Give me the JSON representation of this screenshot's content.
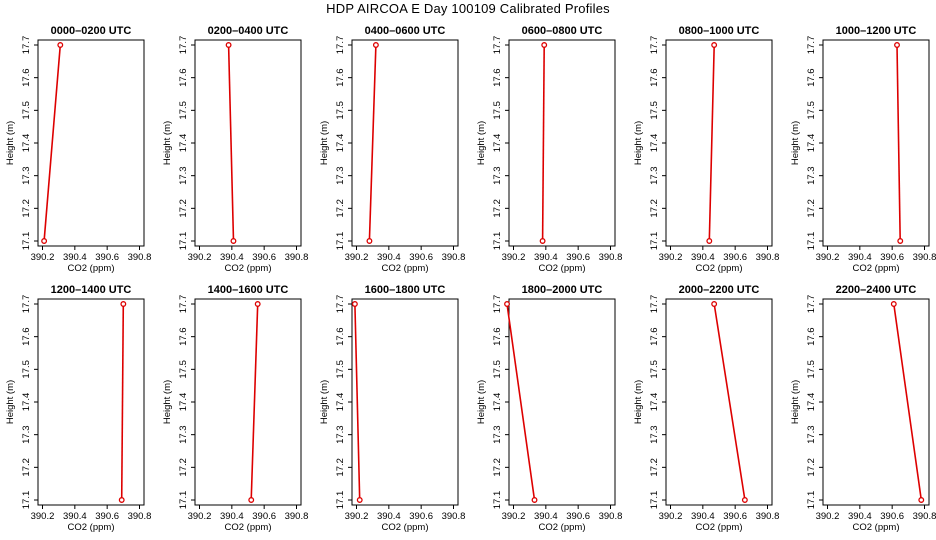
{
  "figure": {
    "title": "HDP AIRCOA E  Day 100109  Calibrated Profiles"
  },
  "colors": {
    "line": "#dd0000",
    "axis": "#000000",
    "background": "#ffffff"
  },
  "chart_data": [
    {
      "type": "line",
      "title": "0000–0200 UTC",
      "xlabel": "CO2 (ppm)",
      "ylabel": "Height (m)",
      "xlim": [
        390.2,
        390.8
      ],
      "ylim": [
        17.1,
        17.7
      ],
      "xticks": [
        "390.2",
        "390.4",
        "390.6",
        "390.8"
      ],
      "yticks": [
        "17.1",
        "17.2",
        "17.3",
        "17.4",
        "17.5",
        "17.6",
        "17.7"
      ],
      "grid": false,
      "series": [
        {
          "x": [
            390.21,
            390.31
          ],
          "y": [
            17.1,
            17.7
          ]
        }
      ]
    },
    {
      "type": "line",
      "title": "0200–0400 UTC",
      "xlabel": "CO2 (ppm)",
      "ylabel": "Height (m)",
      "xlim": [
        390.2,
        390.8
      ],
      "ylim": [
        17.1,
        17.7
      ],
      "xticks": [
        "390.2",
        "390.4",
        "390.6",
        "390.8"
      ],
      "yticks": [
        "17.1",
        "17.2",
        "17.3",
        "17.4",
        "17.5",
        "17.6",
        "17.7"
      ],
      "grid": false,
      "series": [
        {
          "x": [
            390.41,
            390.38
          ],
          "y": [
            17.1,
            17.7
          ]
        }
      ]
    },
    {
      "type": "line",
      "title": "0400–0600 UTC",
      "xlabel": "CO2 (ppm)",
      "ylabel": "Height (m)",
      "xlim": [
        390.2,
        390.8
      ],
      "ylim": [
        17.1,
        17.7
      ],
      "xticks": [
        "390.2",
        "390.4",
        "390.6",
        "390.8"
      ],
      "yticks": [
        "17.1",
        "17.2",
        "17.3",
        "17.4",
        "17.5",
        "17.6",
        "17.7"
      ],
      "grid": false,
      "series": [
        {
          "x": [
            390.28,
            390.32
          ],
          "y": [
            17.1,
            17.7
          ]
        }
      ]
    },
    {
      "type": "line",
      "title": "0600–0800 UTC",
      "xlabel": "CO2 (ppm)",
      "ylabel": "Height (m)",
      "xlim": [
        390.2,
        390.8
      ],
      "ylim": [
        17.1,
        17.7
      ],
      "xticks": [
        "390.2",
        "390.4",
        "390.6",
        "390.8"
      ],
      "yticks": [
        "17.1",
        "17.2",
        "17.3",
        "17.4",
        "17.5",
        "17.6",
        "17.7"
      ],
      "grid": false,
      "series": [
        {
          "x": [
            390.38,
            390.39
          ],
          "y": [
            17.1,
            17.7
          ]
        }
      ]
    },
    {
      "type": "line",
      "title": "0800–1000 UTC",
      "xlabel": "CO2 (ppm)",
      "ylabel": "Height (m)",
      "xlim": [
        390.2,
        390.8
      ],
      "ylim": [
        17.1,
        17.7
      ],
      "xticks": [
        "390.2",
        "390.4",
        "390.6",
        "390.8"
      ],
      "yticks": [
        "17.1",
        "17.2",
        "17.3",
        "17.4",
        "17.5",
        "17.6",
        "17.7"
      ],
      "grid": false,
      "series": [
        {
          "x": [
            390.44,
            390.47
          ],
          "y": [
            17.1,
            17.7
          ]
        }
      ]
    },
    {
      "type": "line",
      "title": "1000–1200 UTC",
      "xlabel": "CO2 (ppm)",
      "ylabel": "Height (m)",
      "xlim": [
        390.2,
        390.8
      ],
      "ylim": [
        17.1,
        17.7
      ],
      "xticks": [
        "390.2",
        "390.4",
        "390.6",
        "390.8"
      ],
      "yticks": [
        "17.1",
        "17.2",
        "17.3",
        "17.4",
        "17.5",
        "17.6",
        "17.7"
      ],
      "grid": false,
      "series": [
        {
          "x": [
            390.65,
            390.63
          ],
          "y": [
            17.1,
            17.7
          ]
        }
      ]
    },
    {
      "type": "line",
      "title": "1200–1400 UTC",
      "xlabel": "CO2 (ppm)",
      "ylabel": "Height (m)",
      "xlim": [
        390.2,
        390.8
      ],
      "ylim": [
        17.1,
        17.7
      ],
      "xticks": [
        "390.2",
        "390.4",
        "390.6",
        "390.8"
      ],
      "yticks": [
        "17.1",
        "17.2",
        "17.3",
        "17.4",
        "17.5",
        "17.6",
        "17.7"
      ],
      "grid": false,
      "series": [
        {
          "x": [
            390.69,
            390.7
          ],
          "y": [
            17.1,
            17.7
          ]
        }
      ]
    },
    {
      "type": "line",
      "title": "1400–1600 UTC",
      "xlabel": "CO2 (ppm)",
      "ylabel": "Height (m)",
      "xlim": [
        390.2,
        390.8
      ],
      "ylim": [
        17.1,
        17.7
      ],
      "xticks": [
        "390.2",
        "390.4",
        "390.6",
        "390.8"
      ],
      "yticks": [
        "17.1",
        "17.2",
        "17.3",
        "17.4",
        "17.5",
        "17.6",
        "17.7"
      ],
      "grid": false,
      "series": [
        {
          "x": [
            390.52,
            390.56
          ],
          "y": [
            17.1,
            17.7
          ]
        }
      ]
    },
    {
      "type": "line",
      "title": "1600–1800 UTC",
      "xlabel": "CO2 (ppm)",
      "ylabel": "Height (m)",
      "xlim": [
        390.2,
        390.8
      ],
      "ylim": [
        17.1,
        17.7
      ],
      "xticks": [
        "390.2",
        "390.4",
        "390.6",
        "390.8"
      ],
      "yticks": [
        "17.1",
        "17.2",
        "17.3",
        "17.4",
        "17.5",
        "17.6",
        "17.7"
      ],
      "grid": false,
      "series": [
        {
          "x": [
            390.22,
            390.19
          ],
          "y": [
            17.1,
            17.7
          ]
        }
      ]
    },
    {
      "type": "line",
      "title": "1800–2000 UTC",
      "xlabel": "CO2 (ppm)",
      "ylabel": "Height (m)",
      "xlim": [
        390.2,
        390.8
      ],
      "ylim": [
        17.1,
        17.7
      ],
      "xticks": [
        "390.2",
        "390.4",
        "390.6",
        "390.8"
      ],
      "yticks": [
        "17.1",
        "17.2",
        "17.3",
        "17.4",
        "17.5",
        "17.6",
        "17.7"
      ],
      "grid": false,
      "series": [
        {
          "x": [
            390.33,
            390.16
          ],
          "y": [
            17.1,
            17.7
          ]
        }
      ]
    },
    {
      "type": "line",
      "title": "2000–2200 UTC",
      "xlabel": "CO2 (ppm)",
      "ylabel": "Height (m)",
      "xlim": [
        390.2,
        390.8
      ],
      "ylim": [
        17.1,
        17.7
      ],
      "xticks": [
        "390.2",
        "390.4",
        "390.6",
        "390.8"
      ],
      "yticks": [
        "17.1",
        "17.2",
        "17.3",
        "17.4",
        "17.5",
        "17.6",
        "17.7"
      ],
      "grid": false,
      "series": [
        {
          "x": [
            390.66,
            390.47
          ],
          "y": [
            17.1,
            17.7
          ]
        }
      ]
    },
    {
      "type": "line",
      "title": "2200–2400 UTC",
      "xlabel": "CO2 (ppm)",
      "ylabel": "Height (m)",
      "xlim": [
        390.2,
        390.8
      ],
      "ylim": [
        17.1,
        17.7
      ],
      "xticks": [
        "390.2",
        "390.4",
        "390.6",
        "390.8"
      ],
      "yticks": [
        "17.1",
        "17.2",
        "17.3",
        "17.4",
        "17.5",
        "17.6",
        "17.7"
      ],
      "grid": false,
      "series": [
        {
          "x": [
            390.78,
            390.61
          ],
          "y": [
            17.1,
            17.7
          ]
        }
      ]
    }
  ]
}
